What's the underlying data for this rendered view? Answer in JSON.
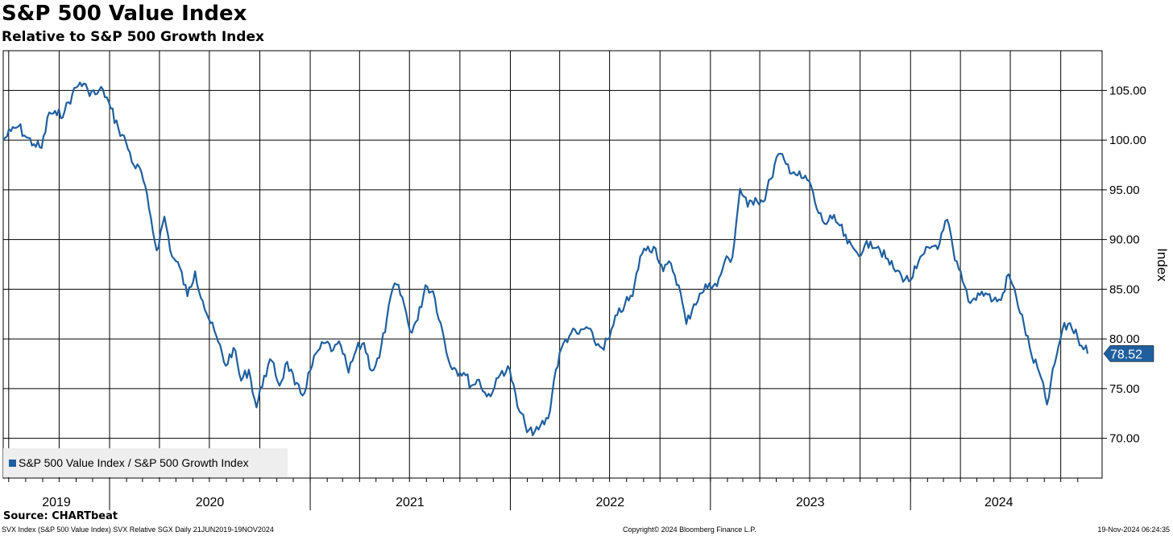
{
  "title": "S&P 500 Value Index",
  "subtitle": "Relative to S&P 500 Growth Index",
  "footer": {
    "source": "Source: CHARTbeat",
    "left": "SVX Index (S&P 500 Value Index) SVX Relative SGX  Daily 21JUN2019-19NOV2024",
    "center": "Copyright© 2024 Bloomberg Finance L.P.",
    "right": "19-Nov-2024 06:24:35"
  },
  "colors": {
    "line": "#1f5f9e",
    "grid": "#000000",
    "label_box": "#1f5f9e"
  },
  "chart_data": {
    "type": "line",
    "title": "S&P 500 Value Index",
    "subtitle": "Relative to S&P 500 Growth Index",
    "ylabel": "Index",
    "ylim": [
      66.0,
      109.0
    ],
    "yticks": [
      "105.00",
      "100.00",
      "95.00",
      "90.00",
      "85.00",
      "80.00",
      "75.00",
      "70.00"
    ],
    "x_range": [
      "2019-06-21",
      "2024-11-19"
    ],
    "x_year_labels": [
      "2019",
      "2020",
      "2021",
      "2022",
      "2023",
      "2024"
    ],
    "grid": true,
    "legend_position": "bottom-left",
    "last_value_label": "78.52",
    "series": [
      {
        "name": "S&P 500 Value Index / S&P 500 Growth Index",
        "points": [
          [
            "2019-06-21",
            100.0
          ],
          [
            "2019-07-05",
            100.9
          ],
          [
            "2019-07-19",
            101.4
          ],
          [
            "2019-08-02",
            100.3
          ],
          [
            "2019-08-16",
            99.6
          ],
          [
            "2019-08-30",
            99.2
          ],
          [
            "2019-09-13",
            102.8
          ],
          [
            "2019-09-27",
            102.5
          ],
          [
            "2019-10-11",
            102.9
          ],
          [
            "2019-10-25",
            104.6
          ],
          [
            "2019-11-08",
            105.8
          ],
          [
            "2019-11-22",
            105.1
          ],
          [
            "2019-12-06",
            104.6
          ],
          [
            "2019-12-20",
            105.1
          ],
          [
            "2020-01-03",
            103.2
          ],
          [
            "2020-01-17",
            101.2
          ],
          [
            "2020-01-31",
            99.8
          ],
          [
            "2020-02-14",
            97.5
          ],
          [
            "2020-02-28",
            96.8
          ],
          [
            "2020-03-13",
            93.1
          ],
          [
            "2020-03-27",
            88.9
          ],
          [
            "2020-04-10",
            92.3
          ],
          [
            "2020-04-24",
            88.3
          ],
          [
            "2020-05-08",
            87.2
          ],
          [
            "2020-05-22",
            84.3
          ],
          [
            "2020-06-05",
            86.8
          ],
          [
            "2020-06-19",
            83.8
          ],
          [
            "2020-07-03",
            81.6
          ],
          [
            "2020-07-17",
            79.7
          ],
          [
            "2020-07-31",
            77.3
          ],
          [
            "2020-08-14",
            79.1
          ],
          [
            "2020-08-28",
            75.8
          ],
          [
            "2020-09-11",
            76.9
          ],
          [
            "2020-09-25",
            73.1
          ],
          [
            "2020-10-09",
            76.3
          ],
          [
            "2020-10-23",
            77.8
          ],
          [
            "2020-11-06",
            75.3
          ],
          [
            "2020-11-20",
            77.7
          ],
          [
            "2020-12-04",
            75.4
          ],
          [
            "2020-12-18",
            74.3
          ],
          [
            "2021-01-01",
            76.8
          ],
          [
            "2021-01-15",
            78.8
          ],
          [
            "2021-01-29",
            79.6
          ],
          [
            "2021-02-12",
            78.9
          ],
          [
            "2021-02-26",
            79.3
          ],
          [
            "2021-03-12",
            76.6
          ],
          [
            "2021-03-26",
            78.9
          ],
          [
            "2021-04-09",
            79.6
          ],
          [
            "2021-04-23",
            76.8
          ],
          [
            "2021-05-07",
            78.1
          ],
          [
            "2021-05-21",
            82.1
          ],
          [
            "2021-06-04",
            85.6
          ],
          [
            "2021-06-18",
            84.2
          ],
          [
            "2021-07-02",
            80.8
          ],
          [
            "2021-07-16",
            81.9
          ],
          [
            "2021-07-30",
            85.4
          ],
          [
            "2021-08-13",
            84.8
          ],
          [
            "2021-08-27",
            81.6
          ],
          [
            "2021-09-10",
            77.9
          ],
          [
            "2021-09-24",
            76.9
          ],
          [
            "2021-10-08",
            76.6
          ],
          [
            "2021-10-22",
            75.3
          ],
          [
            "2021-11-05",
            75.9
          ],
          [
            "2021-11-19",
            74.2
          ],
          [
            "2021-12-03",
            75.1
          ],
          [
            "2021-12-17",
            76.8
          ],
          [
            "2021-12-31",
            76.9
          ],
          [
            "2022-01-14",
            73.2
          ],
          [
            "2022-01-28",
            71.4
          ],
          [
            "2022-02-11",
            70.3
          ],
          [
            "2022-02-25",
            71.3
          ],
          [
            "2022-03-11",
            72.0
          ],
          [
            "2022-03-25",
            76.9
          ],
          [
            "2022-04-08",
            79.6
          ],
          [
            "2022-04-22",
            80.6
          ],
          [
            "2022-05-06",
            80.5
          ],
          [
            "2022-05-20",
            81.2
          ],
          [
            "2022-06-03",
            79.8
          ],
          [
            "2022-06-17",
            79.1
          ],
          [
            "2022-07-01",
            80.1
          ],
          [
            "2022-07-15",
            82.4
          ],
          [
            "2022-07-29",
            83.5
          ],
          [
            "2022-08-12",
            84.3
          ],
          [
            "2022-08-26",
            88.3
          ],
          [
            "2022-09-09",
            89.3
          ],
          [
            "2022-09-23",
            89.1
          ],
          [
            "2022-10-07",
            86.8
          ],
          [
            "2022-10-21",
            87.6
          ],
          [
            "2022-11-04",
            85.4
          ],
          [
            "2022-11-18",
            81.5
          ],
          [
            "2022-12-02",
            83.5
          ],
          [
            "2022-12-16",
            84.6
          ],
          [
            "2022-12-30",
            85.6
          ],
          [
            "2023-01-13",
            85.3
          ],
          [
            "2023-01-27",
            87.8
          ],
          [
            "2023-02-10",
            88.2
          ],
          [
            "2023-02-24",
            95.1
          ],
          [
            "2023-03-10",
            93.3
          ],
          [
            "2023-03-24",
            94.2
          ],
          [
            "2023-04-07",
            93.8
          ],
          [
            "2023-04-21",
            96.1
          ],
          [
            "2023-05-05",
            98.6
          ],
          [
            "2023-05-19",
            97.6
          ],
          [
            "2023-06-02",
            96.8
          ],
          [
            "2023-06-16",
            96.2
          ],
          [
            "2023-06-30",
            95.9
          ],
          [
            "2023-07-14",
            93.1
          ],
          [
            "2023-07-28",
            91.6
          ],
          [
            "2023-08-11",
            92.1
          ],
          [
            "2023-08-25",
            91.4
          ],
          [
            "2023-09-08",
            89.6
          ],
          [
            "2023-09-22",
            88.9
          ],
          [
            "2023-10-06",
            88.8
          ],
          [
            "2023-10-20",
            89.8
          ],
          [
            "2023-11-03",
            89.3
          ],
          [
            "2023-11-17",
            88.1
          ],
          [
            "2023-12-01",
            87.1
          ],
          [
            "2023-12-15",
            86.4
          ],
          [
            "2023-12-29",
            85.8
          ],
          [
            "2024-01-12",
            87.1
          ],
          [
            "2024-01-26",
            88.6
          ],
          [
            "2024-02-09",
            89.3
          ],
          [
            "2024-02-23",
            89.6
          ],
          [
            "2024-03-08",
            92.0
          ],
          [
            "2024-03-22",
            87.9
          ],
          [
            "2024-04-05",
            85.8
          ],
          [
            "2024-04-19",
            83.6
          ],
          [
            "2024-05-03",
            84.6
          ],
          [
            "2024-05-17",
            84.6
          ],
          [
            "2024-05-31",
            83.9
          ],
          [
            "2024-06-14",
            83.9
          ],
          [
            "2024-06-28",
            86.5
          ],
          [
            "2024-07-12",
            84.2
          ],
          [
            "2024-07-26",
            81.4
          ],
          [
            "2024-08-09",
            78.3
          ],
          [
            "2024-08-23",
            76.6
          ],
          [
            "2024-09-06",
            73.4
          ],
          [
            "2024-09-20",
            77.5
          ],
          [
            "2024-10-04",
            80.9
          ],
          [
            "2024-10-18",
            81.6
          ],
          [
            "2024-11-01",
            80.1
          ],
          [
            "2024-11-15",
            79.2
          ],
          [
            "2024-11-19",
            78.52
          ]
        ]
      }
    ]
  }
}
